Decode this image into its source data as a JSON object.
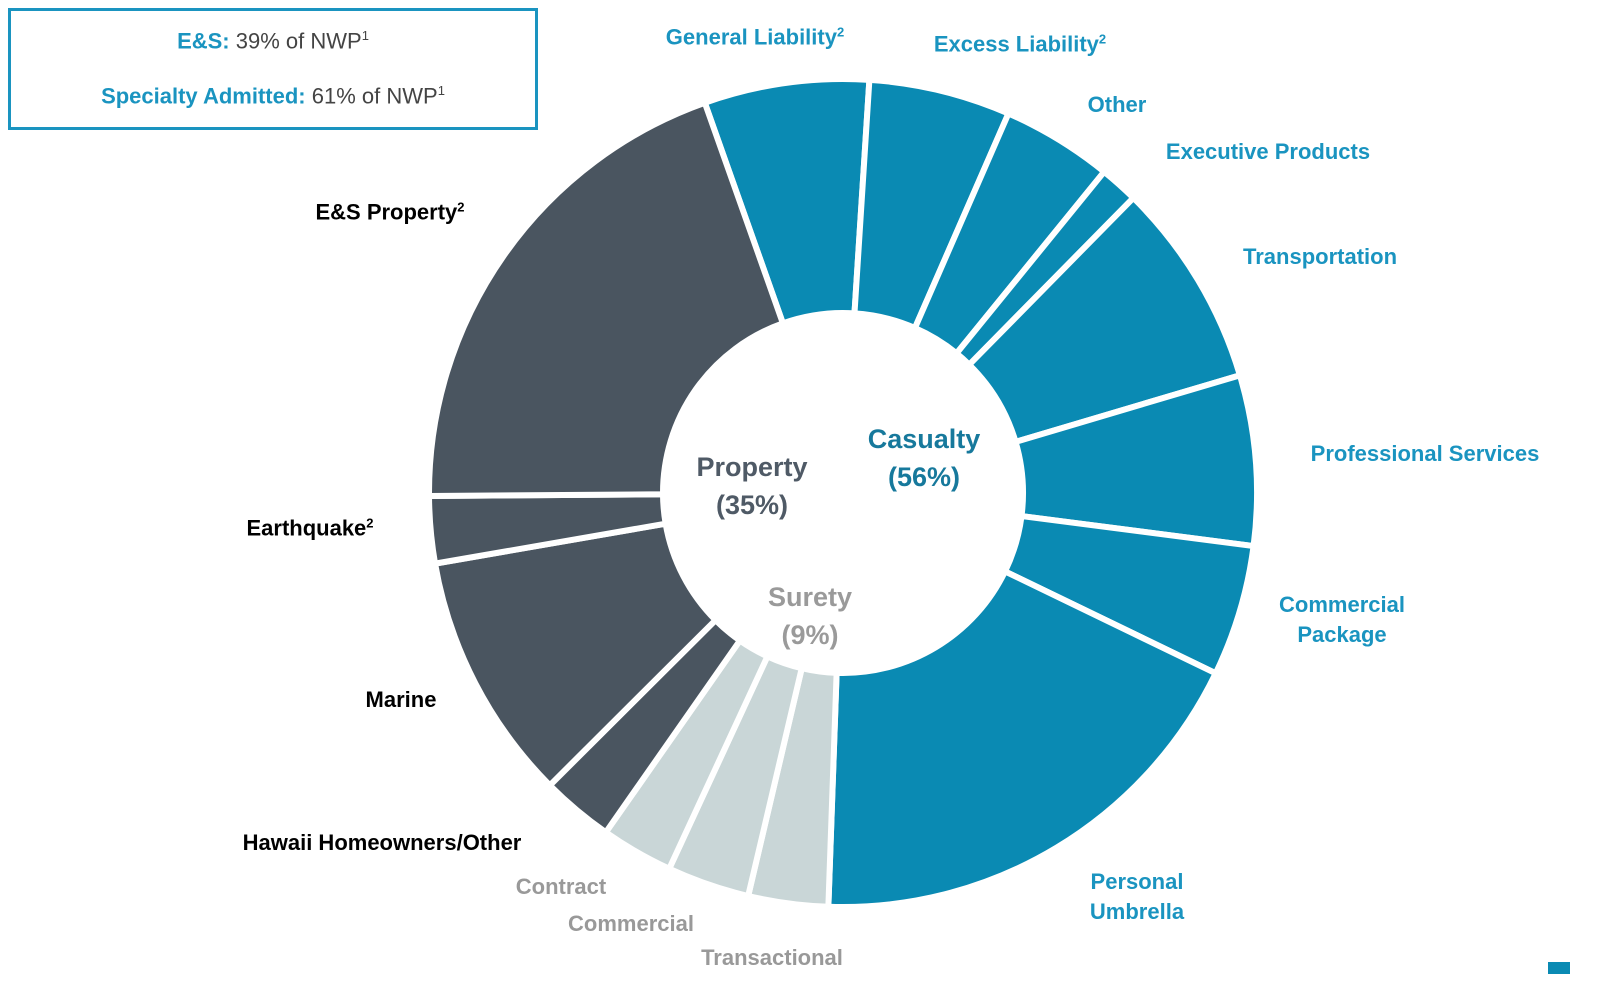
{
  "chart_data": {
    "type": "donut",
    "box": [
      {
        "label": "E&S:",
        "text": "39% of NWP",
        "note": "1"
      },
      {
        "label": "Specialty Admitted:",
        "text": "61% of NWP",
        "note": "1"
      }
    ],
    "categories": [
      {
        "name": "General Liability",
        "note": "2"
      },
      {
        "name": "Excess Liability",
        "note": "2"
      },
      {
        "name": "Other",
        "note": null
      },
      {
        "name": "Executive Products",
        "note": null
      },
      {
        "name": "Transportation",
        "note": null
      },
      {
        "name": "Professional Services",
        "note": null
      },
      {
        "name": "Commercial Package",
        "note": null
      },
      {
        "name": "Personal Umbrella",
        "note": null
      },
      {
        "name": "Transactional",
        "note": null
      },
      {
        "name": "Commercial",
        "note": null
      },
      {
        "name": "Contract",
        "note": null
      },
      {
        "name": "Hawaii Homeowners/Other",
        "note": null
      },
      {
        "name": "Marine",
        "note": null
      },
      {
        "name": "Earthquake",
        "note": "2"
      },
      {
        "name": "E&S Property",
        "note": "2"
      }
    ],
    "values": [
      6.4,
      5.5,
      4.3,
      1.5,
      8.0,
      6.6,
      5.1,
      18.3,
      3.1,
      3.2,
      2.8,
      2.8,
      9.7,
      2.6,
      19.6
    ],
    "segment_group": [
      1,
      1,
      1,
      1,
      1,
      1,
      1,
      1,
      2,
      2,
      2,
      0,
      0,
      0,
      0
    ],
    "groups": [
      {
        "name": "Property",
        "value": 35,
        "value_label": "(35%)",
        "color": "#4a5560",
        "label_color": "#000000",
        "center_color": "#4f5a66"
      },
      {
        "name": "Casualty",
        "value": 56,
        "value_label": "(56%)",
        "color": "#0a8ab3",
        "label_color": "#1a94c0",
        "center_color": "#17799c"
      },
      {
        "name": "Surety",
        "value": 9,
        "value_label": "(9%)",
        "color": "#c9d6d7",
        "label_color": "#999999",
        "center_color": "#9a9a9a"
      }
    ]
  }
}
